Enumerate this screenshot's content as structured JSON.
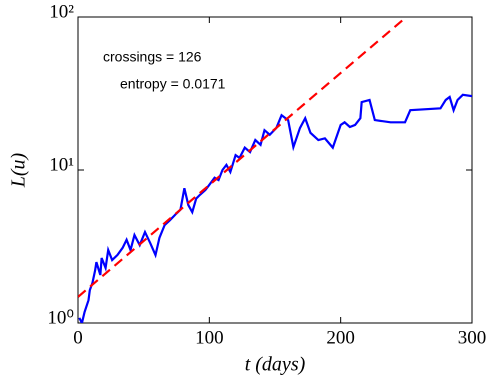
{
  "chart_data": {
    "type": "line",
    "xlabel": "t (days)",
    "ylabel": "L(u)",
    "annotations": [
      "crossings = 126",
      "entropy = 0.0171"
    ],
    "xlim": [
      0,
      300
    ],
    "xticks": [
      0,
      100,
      200,
      300
    ],
    "ylim": [
      1,
      100
    ],
    "yscale": "log",
    "yticks": [
      {
        "value": 1,
        "label": "10⁰"
      },
      {
        "value": 10,
        "label": "10¹"
      },
      {
        "value": 100,
        "label": "10²"
      }
    ],
    "grid": false,
    "series": [
      {
        "name": "L(u)",
        "color": "#0000ff",
        "style": "solid",
        "x": [
          1,
          3,
          5,
          8,
          9,
          11,
          13,
          14,
          17,
          18,
          21,
          23,
          26,
          30,
          34,
          37,
          40,
          43,
          47,
          51,
          55,
          59,
          62,
          66,
          70,
          74,
          78,
          81,
          84,
          87,
          90,
          93,
          97,
          100,
          104,
          107,
          110,
          113,
          116,
          120,
          123,
          127,
          131,
          135,
          139,
          142,
          146,
          151,
          155,
          160,
          164,
          169,
          173,
          177,
          183,
          188,
          194,
          200,
          203,
          207,
          211,
          215,
          216,
          222,
          226,
          238,
          249,
          253,
          276,
          280,
          283,
          286,
          289,
          293,
          300
        ],
        "values": [
          1.08,
          1.0,
          1.18,
          1.41,
          1.64,
          1.83,
          2.2,
          2.5,
          2.06,
          2.66,
          2.29,
          3.0,
          2.58,
          2.78,
          3.1,
          3.5,
          3.0,
          3.76,
          3.23,
          3.93,
          3.33,
          2.78,
          3.6,
          4.37,
          4.7,
          5.1,
          5.5,
          7.6,
          5.9,
          5.3,
          6.5,
          6.9,
          7.4,
          8.0,
          8.9,
          8.6,
          10.0,
          10.8,
          9.7,
          12.5,
          12.0,
          14.0,
          13.1,
          15.7,
          14.6,
          18.2,
          17.0,
          18.8,
          22.8,
          21.2,
          14.1,
          18.8,
          21.8,
          17.5,
          15.7,
          16.1,
          14.0,
          19.7,
          20.5,
          19.1,
          19.7,
          21.8,
          27.8,
          28.7,
          21.2,
          20.5,
          20.5,
          24.6,
          25.3,
          28.7,
          30.0,
          24.6,
          28.7,
          31.0,
          30.4
        ]
      },
      {
        "name": "fit",
        "color": "#ff0000",
        "style": "dashed",
        "x": [
          0,
          250
        ],
        "values": [
          1.48,
          100
        ]
      }
    ]
  }
}
